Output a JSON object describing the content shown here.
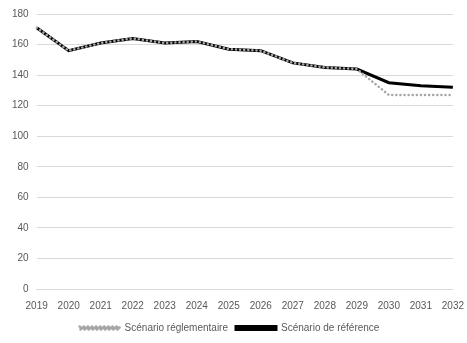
{
  "chart_data": {
    "type": "line",
    "categories": [
      "2019",
      "2020",
      "2021",
      "2022",
      "2023",
      "2024",
      "2025",
      "2026",
      "2027",
      "2028",
      "2029",
      "2030",
      "2031",
      "2032"
    ],
    "series": [
      {
        "name": "Scénario de référence",
        "color": "#000000",
        "line_style": "solid",
        "values": [
          171,
          156,
          161,
          164,
          161,
          162,
          157,
          156,
          148,
          145,
          144,
          135,
          133,
          132
        ]
      },
      {
        "name": "Scénario réglementaire",
        "color": "#a6a6a6",
        "line_style": "dotted",
        "values": [
          171,
          156,
          161,
          164,
          161,
          162,
          157,
          156,
          148,
          145,
          144,
          127,
          127,
          127
        ]
      }
    ],
    "ylim": [
      0,
      180
    ],
    "yticks": [
      0,
      20,
      40,
      60,
      80,
      100,
      120,
      140,
      160,
      180
    ],
    "grid": true,
    "legend": "bottom"
  }
}
